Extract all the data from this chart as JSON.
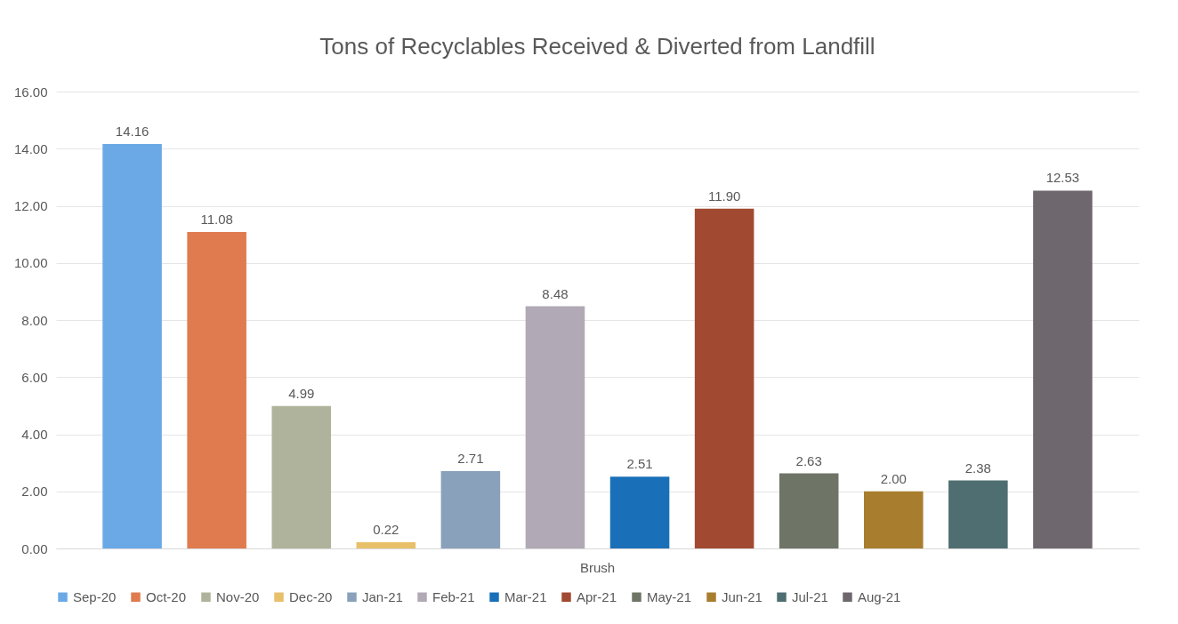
{
  "chart_data": {
    "type": "bar",
    "title": "Tons of Recyclables Received & Diverted from Landfill",
    "categories": [
      "Brush"
    ],
    "series": [
      {
        "name": "Sep-20",
        "color": "#6aa9e6",
        "values": [
          14.16
        ],
        "value_labels": [
          "14.16"
        ]
      },
      {
        "name": "Oct-20",
        "color": "#e07b4f",
        "values": [
          11.08
        ],
        "value_labels": [
          "11.08"
        ]
      },
      {
        "name": "Nov-20",
        "color": "#b0b39b",
        "values": [
          4.99
        ],
        "value_labels": [
          "4.99"
        ]
      },
      {
        "name": "Dec-20",
        "color": "#e8c06a",
        "values": [
          0.22
        ],
        "value_labels": [
          "0.22"
        ]
      },
      {
        "name": "Jan-21",
        "color": "#8aa1bb",
        "values": [
          2.71
        ],
        "value_labels": [
          "2.71"
        ]
      },
      {
        "name": "Feb-21",
        "color": "#b1a9b5",
        "values": [
          8.48
        ],
        "value_labels": [
          "8.48"
        ]
      },
      {
        "name": "Mar-21",
        "color": "#1a70b8",
        "values": [
          2.51
        ],
        "value_labels": [
          "2.51"
        ]
      },
      {
        "name": "Apr-21",
        "color": "#a14a31",
        "values": [
          11.9
        ],
        "value_labels": [
          "11.90"
        ]
      },
      {
        "name": "May-21",
        "color": "#6e7466",
        "values": [
          2.63
        ],
        "value_labels": [
          "2.63"
        ]
      },
      {
        "name": "Jun-21",
        "color": "#a87d2e",
        "values": [
          2.0
        ],
        "value_labels": [
          "2.00"
        ]
      },
      {
        "name": "Jul-21",
        "color": "#4f6e71",
        "values": [
          2.38
        ],
        "value_labels": [
          "2.38"
        ]
      },
      {
        "name": "Aug-21",
        "color": "#6e686e",
        "values": [
          12.53
        ],
        "value_labels": [
          "12.53"
        ]
      }
    ],
    "ylim": [
      0,
      16
    ],
    "yticks": [
      {
        "value": 0,
        "label": "0.00"
      },
      {
        "value": 2,
        "label": "2.00"
      },
      {
        "value": 4,
        "label": "4.00"
      },
      {
        "value": 6,
        "label": "6.00"
      },
      {
        "value": 8,
        "label": "8.00"
      },
      {
        "value": 10,
        "label": "10.00"
      },
      {
        "value": 12,
        "label": "12.00"
      },
      {
        "value": 14,
        "label": "14.00"
      },
      {
        "value": 16,
        "label": "16.00"
      }
    ],
    "grid": "y",
    "legend": "bottom"
  }
}
